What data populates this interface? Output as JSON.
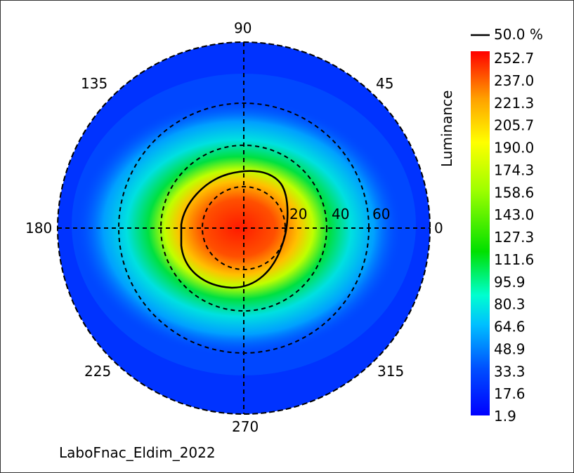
{
  "chart_data": {
    "type": "heatmap",
    "projection": "polar",
    "angle_labels": [
      "0",
      "45",
      "90",
      "135",
      "180",
      "225",
      "270",
      "315"
    ],
    "radial_labels": [
      "20",
      "40",
      "60"
    ],
    "colorbar": {
      "title": "Luminance",
      "ticks": [
        "252.7",
        "237.0",
        "221.3",
        "205.7",
        "190.0",
        "174.3",
        "158.6",
        "143.0",
        "127.3",
        "111.6",
        "95.9",
        "80.3",
        "64.6",
        "48.9",
        "33.3",
        "17.6",
        "1.9"
      ],
      "min": 1.9,
      "max": 252.7,
      "colormap": [
        "#0000ff",
        "#00a0ff",
        "#00ffff",
        "#00ff80",
        "#00e000",
        "#a0ff00",
        "#ffff00",
        "#ffa000",
        "#ff0000"
      ]
    },
    "contour": {
      "label": "50.0 %",
      "color": "#000000"
    },
    "grid": true,
    "legend_position": "right",
    "caption": "LaboFnac_Eldim_2022"
  }
}
